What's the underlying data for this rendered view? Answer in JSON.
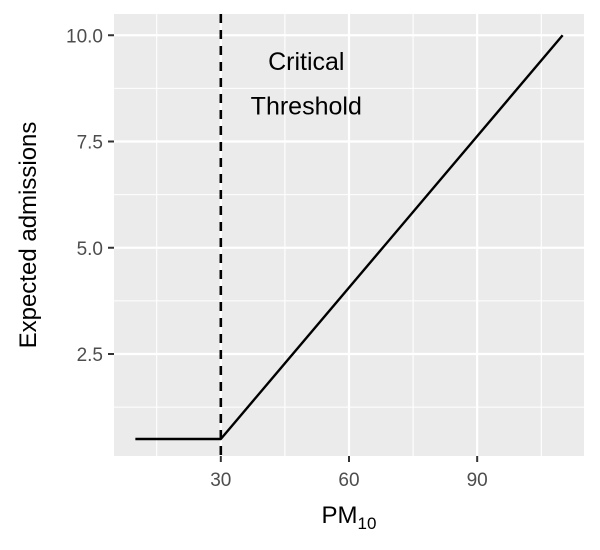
{
  "chart_data": {
    "type": "line",
    "title": "",
    "xlabel": "PM",
    "xlabel_subscript": "10",
    "ylabel": "Expected admissions",
    "xlim": [
      5,
      115
    ],
    "ylim": [
      0.1,
      10.5
    ],
    "x_ticks": [
      {
        "value": 30,
        "label": "30"
      },
      {
        "value": 60,
        "label": "60"
      },
      {
        "value": 90,
        "label": "90"
      }
    ],
    "y_ticks": [
      {
        "value": 2.5,
        "label": "2.5"
      },
      {
        "value": 5.0,
        "label": "5.0"
      },
      {
        "value": 7.5,
        "label": "7.5"
      },
      {
        "value": 10.0,
        "label": "10.0"
      }
    ],
    "series": [
      {
        "x": [
          10,
          30,
          110
        ],
        "y": [
          0.5,
          0.5,
          10.0
        ],
        "color": "#000000"
      }
    ],
    "vlines": [
      {
        "x": 30,
        "style": "dashed",
        "color": "#000000"
      }
    ],
    "annotations": [
      {
        "x": 50,
        "y": 9.4,
        "text": "Critical"
      },
      {
        "x": 50,
        "y": 8.35,
        "text": "Threshold"
      }
    ],
    "grid": true,
    "panel_background": "#ebebeb",
    "grid_color": "#ffffff"
  }
}
